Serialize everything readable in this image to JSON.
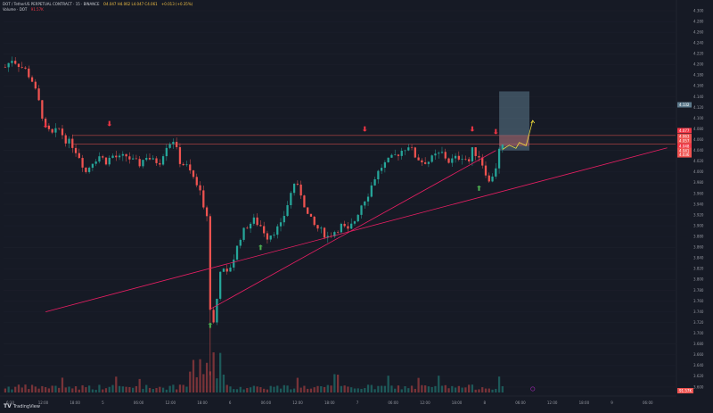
{
  "header": {
    "symbol": "DOT / TetherUS PERPETUAL CONTRACT · 15 · BINANCE",
    "ohlc": "O4.047 H4.062 L4.047 C4.061",
    "change": "+0.013 (+0.35%)",
    "indicator_label": "Volume · DOT",
    "indicator_value": "91.57K"
  },
  "branding": {
    "name": "TradingView"
  },
  "colors": {
    "background": "#161a25",
    "up": "#26a69a",
    "down": "#ef5350",
    "trendline": "#e91e63",
    "resistance": "#ef5350",
    "buy_arrow": "#4caf50",
    "sell_arrow": "#f23645",
    "forecast": "#ffeb3b",
    "target_box": "#5d7a8c"
  },
  "icons": [
    "sell-arrow-icon",
    "buy-arrow-icon",
    "tradingview-logo-icon",
    "settings-icon"
  ],
  "chart_data": {
    "type": "candlestick",
    "y_axis_ticks": [
      "4.300",
      "4.280",
      "4.260",
      "4.240",
      "4.220",
      "4.200",
      "4.180",
      "4.160",
      "4.140",
      "4.120",
      "4.100",
      "4.080",
      "4.060",
      "4.040",
      "4.020",
      "4.000",
      "3.980",
      "3.960",
      "3.940",
      "3.920",
      "3.900",
      "3.880",
      "3.860",
      "3.840",
      "3.820",
      "3.800",
      "3.780",
      "3.760",
      "3.740",
      "3.720",
      "3.700",
      "3.680",
      "3.660",
      "3.640",
      "3.620",
      "3.600"
    ],
    "ylim": [
      3.59,
      4.31
    ],
    "x_axis_ticks": [
      "6:30",
      "12:00",
      "18:00",
      "5",
      "06:00",
      "12:00",
      "18:00",
      "6",
      "06:00",
      "12:00",
      "18:00",
      "7",
      "06:00",
      "12:00",
      "18:00",
      "8",
      "06:00",
      "12:00",
      "18:00",
      "9",
      "06:00"
    ],
    "price_labels": [
      {
        "value": "4.132",
        "color": "#5d7a8c"
      },
      {
        "value": "4.077",
        "color": "#f23645"
      },
      {
        "value": "4.063",
        "color": "#ef5350"
      },
      {
        "value": "4.057",
        "color": "#ef5350"
      },
      {
        "value": "4.048",
        "color": "#f23645"
      },
      {
        "value": "4.041",
        "color": "#ef5350"
      },
      {
        "value": "4.036",
        "color": "#ef5350"
      }
    ],
    "volume_label": "91.57K",
    "resistance_level": 4.06,
    "trendline": {
      "from": [
        12,
        3.74
      ],
      "to": [
        197,
        4.045
      ]
    },
    "sell_signals": [
      12,
      31,
      107,
      139,
      146
    ],
    "buy_signals": [
      12,
      76,
      141
    ],
    "target_box": {
      "x_range": [
        147,
        156
      ],
      "y_range": [
        4.04,
        4.15
      ]
    },
    "forecast_path": [
      [
        148,
        4.042
      ],
      [
        150,
        4.05
      ],
      [
        152,
        4.044
      ],
      [
        153,
        4.055
      ],
      [
        155,
        4.049
      ],
      [
        157,
        4.096
      ]
    ],
    "price_path": [
      [
        0,
        4.195
      ],
      [
        2,
        4.21
      ],
      [
        4,
        4.2
      ],
      [
        6,
        4.19
      ],
      [
        8,
        4.17
      ],
      [
        10,
        4.13
      ],
      [
        12,
        4.08
      ],
      [
        14,
        4.07
      ],
      [
        16,
        4.08
      ],
      [
        18,
        4.06
      ],
      [
        20,
        4.05
      ],
      [
        22,
        4.03
      ],
      [
        24,
        4.0
      ],
      [
        26,
        4.02
      ],
      [
        28,
        4.03
      ],
      [
        30,
        4.02
      ],
      [
        32,
        4.03
      ],
      [
        34,
        4.025
      ],
      [
        36,
        4.03
      ],
      [
        38,
        4.02
      ],
      [
        40,
        4.015
      ],
      [
        42,
        4.03
      ],
      [
        44,
        4.02
      ],
      [
        46,
        4.02
      ],
      [
        48,
        4.05
      ],
      [
        50,
        4.06
      ],
      [
        52,
        4.02
      ],
      [
        54,
        4.01
      ],
      [
        56,
        3.99
      ],
      [
        58,
        3.96
      ],
      [
        60,
        3.92
      ],
      [
        61,
        3.75
      ],
      [
        62,
        3.72
      ],
      [
        63,
        3.77
      ],
      [
        64,
        3.82
      ],
      [
        66,
        3.81
      ],
      [
        68,
        3.84
      ],
      [
        70,
        3.88
      ],
      [
        72,
        3.9
      ],
      [
        74,
        3.91
      ],
      [
        76,
        3.9
      ],
      [
        78,
        3.88
      ],
      [
        80,
        3.89
      ],
      [
        82,
        3.9
      ],
      [
        84,
        3.94
      ],
      [
        86,
        3.98
      ],
      [
        88,
        3.96
      ],
      [
        90,
        3.92
      ],
      [
        92,
        3.9
      ],
      [
        94,
        3.89
      ],
      [
        96,
        3.88
      ],
      [
        98,
        3.89
      ],
      [
        100,
        3.9
      ],
      [
        102,
        3.89
      ],
      [
        104,
        3.91
      ],
      [
        106,
        3.94
      ],
      [
        108,
        3.96
      ],
      [
        110,
        3.99
      ],
      [
        112,
        4.01
      ],
      [
        114,
        4.02
      ],
      [
        116,
        4.03
      ],
      [
        118,
        4.04
      ],
      [
        120,
        4.05
      ],
      [
        122,
        4.03
      ],
      [
        124,
        4.02
      ],
      [
        126,
        4.02
      ],
      [
        128,
        4.03
      ],
      [
        130,
        4.035
      ],
      [
        132,
        4.02
      ],
      [
        134,
        4.025
      ],
      [
        136,
        4.03
      ],
      [
        138,
        4.02
      ],
      [
        139,
        4.04
      ],
      [
        141,
        4.03
      ],
      [
        143,
        4.0
      ],
      [
        144,
        3.98
      ],
      [
        146,
        4.01
      ],
      [
        147,
        4.04
      ],
      [
        148,
        4.045
      ]
    ]
  }
}
